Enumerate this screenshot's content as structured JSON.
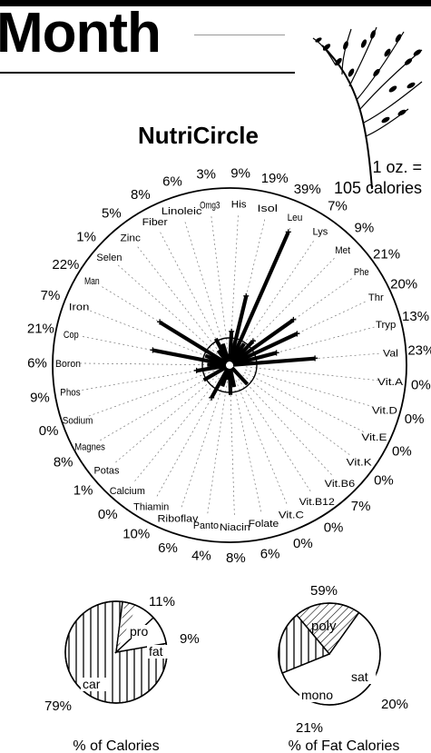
{
  "header": {
    "title": "Month"
  },
  "serving": {
    "line1": "1 oz. =",
    "line2": "105 calories"
  },
  "chart_data": [
    {
      "type": "radial-bar",
      "title": "NutriCircle",
      "nutrients": [
        {
          "name": "Cop",
          "pct": 21
        },
        {
          "name": "Iron",
          "pct": 7
        },
        {
          "name": "Man",
          "pct": 22
        },
        {
          "name": "Selen",
          "pct": 1
        },
        {
          "name": "Zinc",
          "pct": 5
        },
        {
          "name": "Fiber",
          "pct": 8
        },
        {
          "name": "Linoleic",
          "pct": 6
        },
        {
          "name": "Omg3",
          "pct": 3
        },
        {
          "name": "His",
          "pct": 9
        },
        {
          "name": "Isol",
          "pct": 19
        },
        {
          "name": "Leu",
          "pct": 39
        },
        {
          "name": "Lys",
          "pct": 7
        },
        {
          "name": "Met",
          "pct": 9
        },
        {
          "name": "Phe",
          "pct": 21
        },
        {
          "name": "Thr",
          "pct": 20
        },
        {
          "name": "Tryp",
          "pct": 13
        },
        {
          "name": "Val",
          "pct": 23
        },
        {
          "name": "Vit.A",
          "pct": 0
        },
        {
          "name": "Vit.D",
          "pct": 0
        },
        {
          "name": "Vit.E",
          "pct": 0
        },
        {
          "name": "Vit.K",
          "pct": 0
        },
        {
          "name": "Vit.B6",
          "pct": 7
        },
        {
          "name": "Vit.B12",
          "pct": 0
        },
        {
          "name": "Vit.C",
          "pct": 0
        },
        {
          "name": "Folate",
          "pct": 6
        },
        {
          "name": "Niacin",
          "pct": 8
        },
        {
          "name": "Panto",
          "pct": 4
        },
        {
          "name": "Riboflav",
          "pct": 6
        },
        {
          "name": "Thiamin",
          "pct": 10
        },
        {
          "name": "Calcium",
          "pct": 0
        },
        {
          "name": "Potas",
          "pct": 1
        },
        {
          "name": "Magnes",
          "pct": 8
        },
        {
          "name": "Sodium",
          "pct": 0
        },
        {
          "name": "Phos",
          "pct": 9
        },
        {
          "name": "Boron",
          "pct": 6
        }
      ]
    },
    {
      "type": "pie",
      "title": "% of Calories",
      "slices": [
        {
          "label": "car",
          "value": 79,
          "value_label": "79%"
        },
        {
          "label": "pro",
          "value": 11,
          "value_label": "11%"
        },
        {
          "label": "fat",
          "value": 9,
          "value_label": "9%"
        }
      ]
    },
    {
      "type": "pie",
      "title": "% of Fat Calories",
      "slices": [
        {
          "label": "poly",
          "value": 59,
          "value_label": "59%"
        },
        {
          "label": "sat",
          "value": 20,
          "value_label": "20%"
        },
        {
          "label": "mono",
          "value": 21,
          "value_label": "21%"
        }
      ]
    }
  ]
}
